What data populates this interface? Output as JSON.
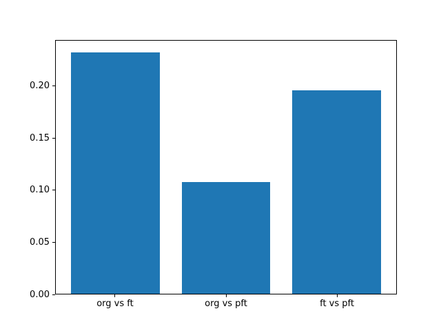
{
  "figure": {
    "background": "#ffffff",
    "spine_color": "#000000",
    "text_color": "#000000"
  },
  "chart_data": {
    "type": "bar",
    "title": "",
    "xlabel": "",
    "ylabel": "",
    "categories": [
      "org vs ft",
      "org vs pft",
      "ft vs pft"
    ],
    "values": [
      0.233,
      0.108,
      0.196
    ],
    "bar_color": "#1f77b4",
    "bar_width": 0.8,
    "xlim": [
      -0.54,
      2.54
    ],
    "ylim": [
      0,
      0.2444
    ],
    "yticks": {
      "values": [
        0,
        0.05,
        0.1,
        0.15,
        0.2
      ],
      "labels": [
        "0.00",
        "0.05",
        "0.10",
        "0.15",
        "0.20"
      ]
    },
    "grid": false,
    "legend": null
  }
}
